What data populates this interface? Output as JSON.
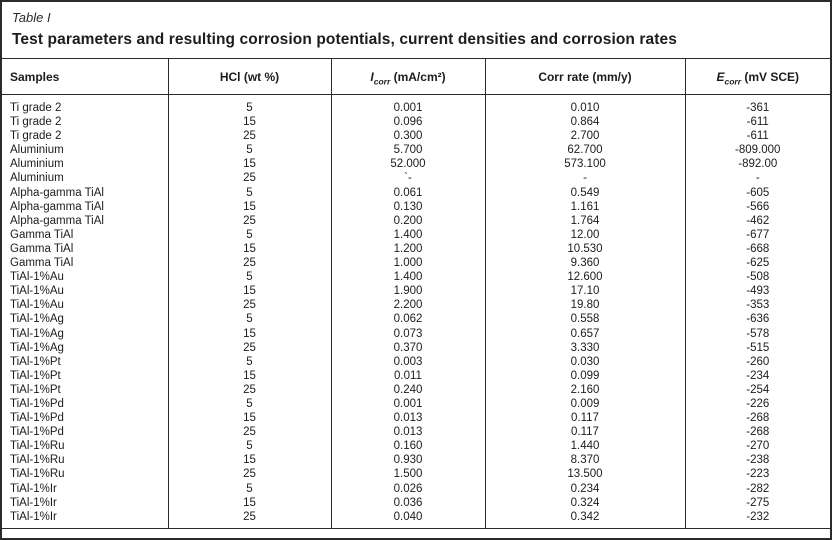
{
  "colors": {
    "background": "#ffffff",
    "text": "#1c1c1c",
    "border": "#2b2b2b"
  },
  "page": {
    "caption": "Table I",
    "title": "Test parameters and resulting corrosion potentials, current densities and corrosion rates"
  },
  "table": {
    "header": {
      "samples": "Samples",
      "hcl": "HCl (wt %)",
      "icorr": {
        "symbol": "I",
        "sub": "corr",
        "unit": " (mA/cm²)"
      },
      "corr_rate": "Corr rate (mm/y)",
      "ecorr": {
        "symbol": "E",
        "sub": "corr",
        "unit": " (mV SCE)"
      }
    },
    "rows": [
      [
        "Ti grade 2",
        "5",
        "0.001",
        "0.010",
        "-361"
      ],
      [
        "Ti grade 2",
        "15",
        "0.096",
        "0.864",
        "-611"
      ],
      [
        "Ti grade 2",
        "25",
        "0.300",
        "2.700",
        "-611"
      ],
      [
        "Aluminium",
        "5",
        "5.700",
        "62.700",
        "-809.000"
      ],
      [
        "Aluminium",
        "15",
        "52.000",
        "573.100",
        "-892.00"
      ],
      [
        "Aluminium",
        "25",
        "`-",
        "-",
        "-"
      ],
      [
        "Alpha-gamma TiAl",
        "5",
        "0.061",
        "0.549",
        "-605"
      ],
      [
        "Alpha-gamma TiAl",
        "15",
        "0.130",
        "1.161",
        "-566"
      ],
      [
        "Alpha-gamma TiAl",
        "25",
        "0.200",
        "1.764",
        "-462"
      ],
      [
        "Gamma TiAl",
        "5",
        "1.400",
        "12.00",
        "-677"
      ],
      [
        "Gamma TiAl",
        "15",
        "1.200",
        "10.530",
        "-668"
      ],
      [
        "Gamma TiAl",
        "25",
        "1.000",
        "9.360",
        "-625"
      ],
      [
        "TiAl-1%Au",
        "5",
        "1.400",
        "12.600",
        "-508"
      ],
      [
        "TiAl-1%Au",
        "15",
        "1.900",
        "17.10",
        "-493"
      ],
      [
        "TiAl-1%Au",
        "25",
        "2.200",
        "19.80",
        "-353"
      ],
      [
        "TiAl-1%Ag",
        "5",
        "0.062",
        "0.558",
        "-636"
      ],
      [
        "TiAl-1%Ag",
        "15",
        "0.073",
        "0.657",
        "-578"
      ],
      [
        "TiAl-1%Ag",
        "25",
        "0.370",
        "3.330",
        "-515"
      ],
      [
        "TiAl-1%Pt",
        "5",
        "0.003",
        "0.030",
        "-260"
      ],
      [
        "TiAl-1%Pt",
        "15",
        "0.011",
        "0.099",
        "-234"
      ],
      [
        "TiAl-1%Pt",
        "25",
        "0.240",
        "2.160",
        "-254"
      ],
      [
        "TiAl-1%Pd",
        "5",
        "0.001",
        "0.009",
        "-226"
      ],
      [
        "TiAl-1%Pd",
        "15",
        "0.013",
        "0.117",
        "-268"
      ],
      [
        "TiAl-1%Pd",
        "25",
        "0.013",
        "0.117",
        "-268"
      ],
      [
        "TiAl-1%Ru",
        "5",
        "0.160",
        "1.440",
        "-270"
      ],
      [
        "TiAl-1%Ru",
        "15",
        "0.930",
        "8.370",
        "-238"
      ],
      [
        "TiAl-1%Ru",
        "25",
        "1.500",
        "13.500",
        "-223"
      ],
      [
        "TiAl-1%Ir",
        "5",
        "0.026",
        "0.234",
        "-282"
      ],
      [
        "TiAl-1%Ir",
        "15",
        "0.036",
        "0.324",
        "-275"
      ],
      [
        "TiAl-1%Ir",
        "25",
        "0.040",
        "0.342",
        "-232"
      ]
    ]
  }
}
